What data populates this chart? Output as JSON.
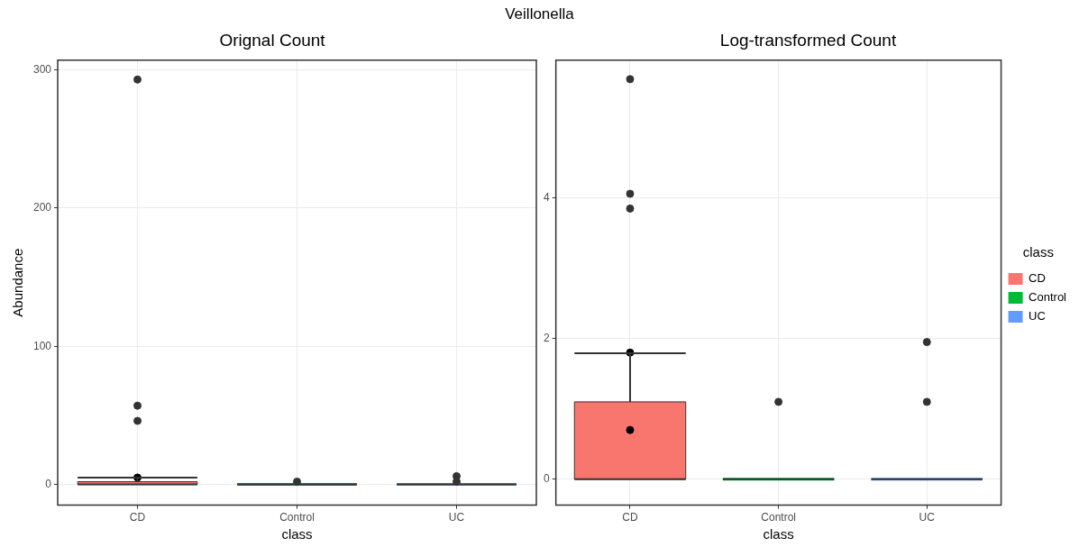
{
  "chart_data": [
    {
      "type": "box",
      "title": "Orignal Count",
      "xlabel": "class",
      "ylabel": "Abundance",
      "annotations": [
        "Veillonella"
      ],
      "categories": [
        "CD",
        "Control",
        "UC"
      ],
      "ylim": [
        -15,
        307
      ],
      "yticks": [
        0,
        100,
        200,
        300
      ],
      "grid": true,
      "marker": "circle",
      "series": [
        {
          "color": "#f8766d",
          "boxes": [
            {
              "low": 0,
              "q1": 0,
              "median": 0,
              "q3": 2,
              "high": 5,
              "outliers": [
                293,
                57,
                46
              ]
            },
            null,
            null
          ]
        },
        {
          "color": "#00ba38",
          "boxes": [
            null,
            {
              "low": 0,
              "q1": 0,
              "median": 0,
              "q3": 0,
              "high": 0,
              "outliers": [
                2
              ]
            },
            null
          ]
        },
        {
          "color": "#619cff",
          "boxes": [
            null,
            null,
            {
              "low": 0,
              "q1": 0,
              "median": 0,
              "q3": 0,
              "high": 0,
              "outliers": [
                6,
                2
              ]
            }
          ]
        },
        {
          "type": "scatter",
          "color": "#000000",
          "x": [
            "CD"
          ],
          "values": [
            5
          ]
        }
      ]
    },
    {
      "type": "box",
      "title": "Log-transformed Count",
      "xlabel": "class",
      "legend": "right",
      "legend_title": "class",
      "categories": [
        "CD",
        "Control",
        "UC"
      ],
      "ylim": [
        -0.37,
        5.96
      ],
      "yticks": [
        0,
        2,
        4
      ],
      "grid": true,
      "marker": "circle",
      "series": [
        {
          "name": "CD",
          "color": "#f8766d",
          "boxes": [
            {
              "low": 0,
              "q1": 0,
              "median": 0,
              "q3": 1.1,
              "high": 1.79,
              "outliers": [
                5.69,
                4.06,
                3.85
              ]
            },
            null,
            null
          ]
        },
        {
          "name": "Control",
          "color": "#00ba38",
          "boxes": [
            null,
            {
              "low": 0,
              "q1": 0,
              "median": 0,
              "q3": 0,
              "high": 0,
              "outliers": [
                1.1
              ]
            },
            null
          ]
        },
        {
          "name": "UC",
          "color": "#619cff",
          "boxes": [
            null,
            null,
            {
              "low": 0,
              "q1": 0,
              "median": 0,
              "q3": 0,
              "high": 0,
              "outliers": [
                1.95,
                1.1
              ]
            }
          ]
        },
        {
          "type": "scatter",
          "color": "#000000",
          "x": [
            "CD",
            "CD"
          ],
          "values": [
            1.8,
            0.7
          ]
        }
      ]
    }
  ]
}
